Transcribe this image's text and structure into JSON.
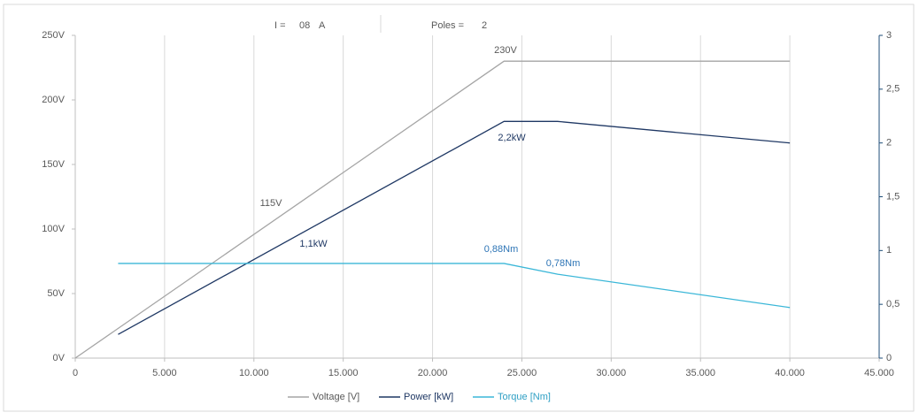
{
  "header": {
    "current_label": "I =",
    "current_value": "08",
    "current_unit": "A",
    "poles_label": "Poles =",
    "poles_value": 2
  },
  "chart_data": {
    "type": "line",
    "xlim": [
      0,
      45000
    ],
    "xticks": [
      0,
      {
        "value": 5000,
        "label": "5.000"
      },
      {
        "value": 10000,
        "label": "10.000"
      },
      {
        "value": 15000,
        "label": "15.000"
      },
      {
        "value": 20000,
        "label": "20.000"
      },
      {
        "value": 25000,
        "label": "25.000"
      },
      {
        "value": 30000,
        "label": "30.000"
      },
      {
        "value": 35000,
        "label": "35.000"
      },
      {
        "value": 40000,
        "label": "40.000"
      },
      {
        "value": 45000,
        "label": "45.000"
      }
    ],
    "ylim": [
      0,
      250
    ],
    "yticks": [
      {
        "value": 0,
        "label": "0V"
      },
      {
        "value": 50,
        "label": "50V"
      },
      {
        "value": 100,
        "label": "100V"
      },
      {
        "value": 150,
        "label": "150V"
      },
      {
        "value": 200,
        "label": "200V"
      },
      {
        "value": 250,
        "label": "250V"
      }
    ],
    "y2lim": [
      0,
      3
    ],
    "y2ticks": [
      0,
      {
        "value": 0.5,
        "label": "0,5"
      },
      1,
      {
        "value": 1.5,
        "label": "1,5"
      },
      2,
      {
        "value": 2.5,
        "label": "2,5"
      },
      3
    ],
    "grid": true,
    "series": [
      {
        "name": "Voltage [V]",
        "color": "#a5a5a5",
        "x": [
          0,
          24000,
          40000
        ],
        "values": [
          0,
          230,
          230
        ]
      },
      {
        "name": "Power [kW]",
        "color": "#1f3864",
        "axis": "y2",
        "x": [
          2400,
          24000,
          27000,
          40000
        ],
        "values": [
          0.22,
          2.2,
          2.2,
          2.0
        ]
      },
      {
        "name": "Torque [Nm]",
        "color": "#3bb7d8",
        "axis": "y2",
        "x": [
          2400,
          24000,
          27000,
          40000
        ],
        "values": [
          0.88,
          0.88,
          0.78,
          0.47
        ]
      }
    ],
    "annotations": [
      {
        "text": "230V",
        "color": "#595959"
      },
      {
        "text": "115V",
        "color": "#595959"
      },
      {
        "text": "2,2kW",
        "color": "#1f3864"
      },
      {
        "text": "1,1kW",
        "color": "#1f3864"
      },
      {
        "text": "0,88Nm",
        "color": "#2e75b6"
      },
      {
        "text": "0,78Nm",
        "color": "#2e75b6"
      }
    ]
  }
}
